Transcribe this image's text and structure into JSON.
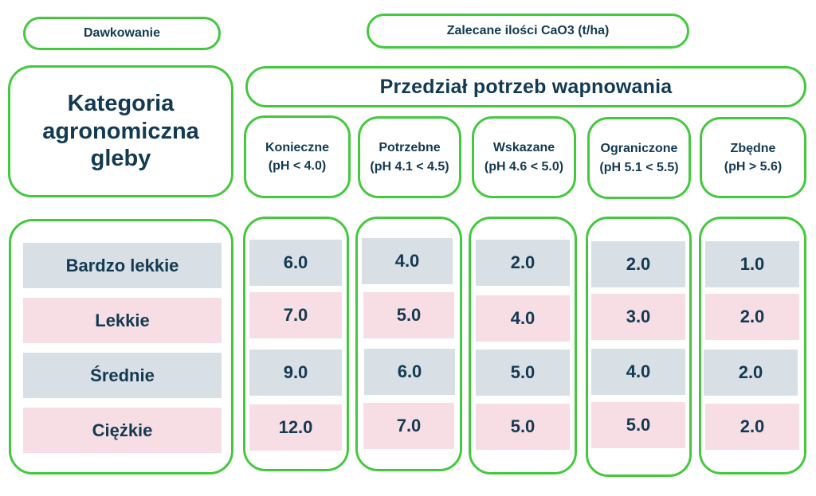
{
  "header": {
    "dosage_label": "Dawkowanie",
    "recommended_label": "Zalecane ilości CaO3 (t/ha)",
    "category_title": "Kategoria agronomiczna gleby",
    "range_title": "Przedział potrzeb wapnowania"
  },
  "chart_data": {
    "type": "table",
    "columns": [
      {
        "name": "Konieczne",
        "range": "(pH < 4.0)"
      },
      {
        "name": "Potrzebne",
        "range": "(pH 4.1 < 4.5)"
      },
      {
        "name": "Wskazane",
        "range": "(pH 4.6 < 5.0)"
      },
      {
        "name": "Ograniczone",
        "range": "(pH 5.1 < 5.5)"
      },
      {
        "name": "Zbędne",
        "range": "(pH > 5.6)"
      }
    ],
    "rows": [
      "Bardzo lekkie",
      "Lekkie",
      "Średnie",
      "Ciężkie"
    ],
    "values": [
      [
        "6.0",
        "4.0",
        "2.0",
        "2.0",
        "1.0"
      ],
      [
        "7.0",
        "5.0",
        "4.0",
        "3.0",
        "2.0"
      ],
      [
        "9.0",
        "6.0",
        "5.0",
        "4.0",
        "2.0"
      ],
      [
        "12.0",
        "7.0",
        "5.0",
        "5.0",
        "2.0"
      ]
    ],
    "row_colors": [
      "#d8dfe5",
      "#f7dde4",
      "#d8dfe5",
      "#f7dde4"
    ],
    "border_color": "#44c93e",
    "text_color": "#123a52"
  }
}
